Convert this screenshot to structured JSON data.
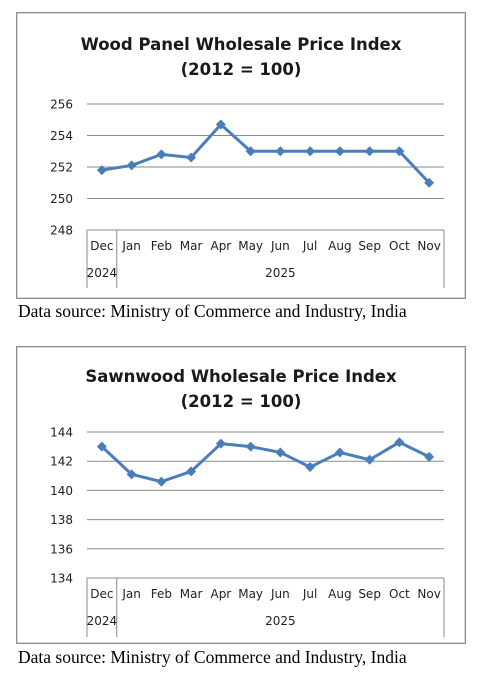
{
  "chart_data": [
    {
      "type": "line",
      "title": "Wood Panel Wholesale Price Index",
      "subtitle": "(2012 = 100)",
      "categories": [
        "Dec",
        "Jan",
        "Feb",
        "Mar",
        "Apr",
        "May",
        "Jun",
        "Jul",
        "Aug",
        "Sep",
        "Oct",
        "Nov"
      ],
      "year_groups": [
        {
          "label": "2024",
          "span": [
            0,
            0
          ]
        },
        {
          "label": "2025",
          "span": [
            1,
            11
          ]
        }
      ],
      "series": [
        {
          "values": [
            251.8,
            252.1,
            252.8,
            252.6,
            254.7,
            253.0,
            253.0,
            253.0,
            253.0,
            253.0,
            253.0,
            251.0
          ],
          "color": "#4a7ebb"
        }
      ],
      "ylim": [
        248,
        256
      ],
      "yticks": [
        248,
        250,
        252,
        254,
        256
      ],
      "grid": true,
      "source": "Data source: Ministry of Commerce and Industry, India"
    },
    {
      "type": "line",
      "title": "Sawnwood Wholesale Price Index",
      "subtitle": "(2012 = 100)",
      "categories": [
        "Dec",
        "Jan",
        "Feb",
        "Mar",
        "Apr",
        "May",
        "Jun",
        "Jul",
        "Aug",
        "Sep",
        "Oct",
        "Nov"
      ],
      "year_groups": [
        {
          "label": "2024",
          "span": [
            0,
            0
          ]
        },
        {
          "label": "2025",
          "span": [
            1,
            11
          ]
        }
      ],
      "series": [
        {
          "values": [
            143.0,
            141.1,
            140.6,
            141.3,
            143.2,
            143.0,
            142.6,
            141.6,
            142.6,
            142.1,
            143.3,
            142.3
          ],
          "color": "#4a7ebb"
        }
      ],
      "ylim": [
        134,
        144
      ],
      "yticks": [
        134,
        136,
        138,
        140,
        142,
        144
      ],
      "grid": true,
      "source": "Data source: Ministry of Commerce and Industry, India"
    }
  ]
}
